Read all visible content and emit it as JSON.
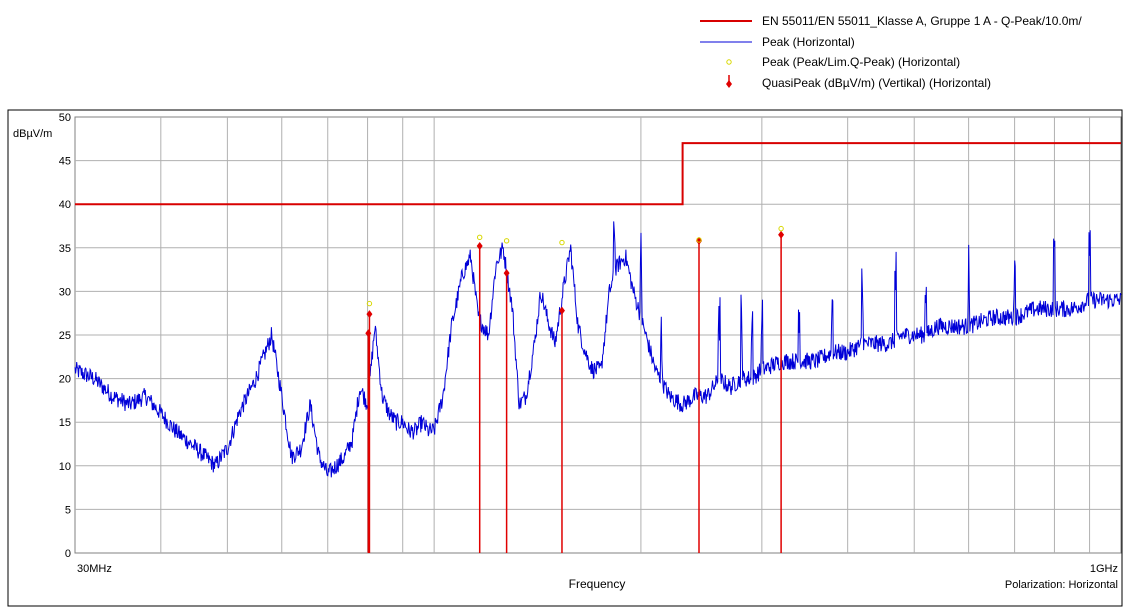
{
  "chart_data": {
    "type": "line",
    "title": "",
    "xlabel": "Frequency",
    "ylabel": "dBµV/m",
    "x_start_label": "30MHz",
    "x_end_label": "1GHz",
    "x_scale": "log",
    "xlim_mhz": [
      30,
      1000
    ],
    "ylim": [
      0,
      50
    ],
    "yticks": [
      0,
      5,
      10,
      15,
      20,
      25,
      30,
      35,
      40,
      45,
      50
    ],
    "grid": true,
    "legend_position": "top-right",
    "footer_note": "Polarization: Horizontal",
    "colors": {
      "limit": "#d80000",
      "peak": "#0000d8",
      "peak_marker": "#ffff40",
      "qp_marker": "#e00000",
      "grid": "#b0b0b0"
    },
    "legend": [
      {
        "label": "EN 55011/EN 55011_Klasse A, Gruppe 1 A - Q-Peak/10.0m/",
        "style": "limit"
      },
      {
        "label": "Peak (Horizontal)",
        "style": "peak"
      },
      {
        "label": "Peak (Peak/Lim.Q-Peak) (Horizontal)",
        "style": "peak_marker"
      },
      {
        "label": "QuasiPeak (dBµV/m) (Vertikal) (Horizontal)",
        "style": "qp_marker"
      }
    ],
    "limit_line": {
      "name": "EN 55011/EN 55011_Klasse A, Gruppe 1 A - Q-Peak/10.0m/",
      "segments": [
        {
          "x_mhz": [
            30,
            230
          ],
          "y": 40
        },
        {
          "x_mhz": [
            230,
            1000
          ],
          "y": 47
        }
      ]
    },
    "peak_series": {
      "name": "Peak (Horizontal)",
      "x_mhz": [
        30,
        32,
        34,
        36,
        38,
        40,
        42,
        45,
        48,
        50,
        52,
        55,
        58,
        60,
        62,
        64,
        66,
        68,
        70,
        72,
        74,
        76,
        78,
        80,
        82,
        84,
        86,
        88,
        90,
        92,
        94,
        96,
        98,
        100,
        103,
        106,
        110,
        113,
        116,
        120,
        123,
        126,
        130,
        133,
        136,
        140,
        143,
        146,
        150,
        154,
        158,
        162,
        166,
        170,
        175,
        180,
        185,
        190,
        195,
        200,
        210,
        220,
        230,
        240,
        250,
        260,
        270,
        280,
        290,
        300,
        320,
        340,
        360,
        380,
        400,
        420,
        440,
        460,
        480,
        500,
        520,
        540,
        560,
        580,
        600,
        650,
        700,
        750,
        800,
        850,
        900,
        950,
        1000
      ],
      "y": [
        21,
        20,
        18,
        17,
        18,
        16,
        14,
        12,
        10,
        12,
        16,
        20,
        25,
        18,
        11,
        12,
        17,
        11,
        9,
        10,
        11,
        13,
        19,
        17,
        26,
        18,
        16,
        15,
        15,
        14,
        14,
        15,
        14,
        14,
        18,
        26,
        32,
        34,
        27,
        25,
        33,
        35,
        28,
        17,
        18,
        24,
        30,
        27,
        24,
        30,
        35,
        26,
        23,
        21,
        21,
        30,
        33,
        34,
        30,
        27,
        21,
        18,
        17,
        18,
        18,
        20,
        19,
        20,
        20,
        21,
        22,
        22,
        22,
        23,
        23,
        24,
        24,
        24,
        25,
        25,
        25,
        26,
        26,
        26,
        26,
        27,
        27,
        28,
        28,
        28,
        29,
        29,
        29
      ]
    },
    "peak_markers": {
      "name": "Peak (Peak/Lim.Q-Peak) (Horizontal)",
      "points": [
        {
          "x_mhz": 80.5,
          "y": 28.6
        },
        {
          "x_mhz": 116.5,
          "y": 36.2
        },
        {
          "x_mhz": 127.5,
          "y": 35.8
        },
        {
          "x_mhz": 153.5,
          "y": 35.6
        },
        {
          "x_mhz": 243,
          "y": 35.9
        },
        {
          "x_mhz": 320,
          "y": 37.2
        }
      ]
    },
    "quasipeak_markers": {
      "name": "QuasiPeak (dBµV/m) (Vertikal) (Horizontal)",
      "points": [
        {
          "x_mhz": 80.2,
          "y": 25.2
        },
        {
          "x_mhz": 80.5,
          "y": 27.4
        },
        {
          "x_mhz": 116.5,
          "y": 35.2
        },
        {
          "x_mhz": 127.5,
          "y": 32.1
        },
        {
          "x_mhz": 153.5,
          "y": 27.8
        },
        {
          "x_mhz": 243,
          "y": 35.8
        },
        {
          "x_mhz": 320,
          "y": 36.5
        }
      ]
    }
  }
}
